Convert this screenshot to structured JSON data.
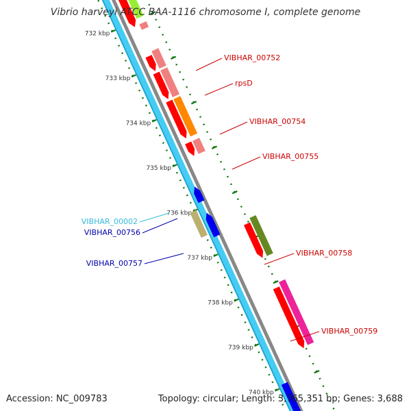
{
  "title": "Vibrio harveyi ATCC BAA-1116 chromosome I, complete genome",
  "footer": {
    "accession": "Accession: NC_009783",
    "summary": "Topology: circular; Length: 3,765,351 bp; Genes: 3,688"
  },
  "ruler": {
    "unit": "kbp",
    "ticks": [
      "732 kbp",
      "733 kbp",
      "734 kbp",
      "735 kbp",
      "736 kbp",
      "737 kbp",
      "738 kbp",
      "739 kbp",
      "740 kbp"
    ]
  },
  "features": [
    {
      "name": "VIBHAR_00752",
      "color": "#cc0000"
    },
    {
      "name": "rpsD",
      "color": "#cc0000"
    },
    {
      "name": "VIBHAR_00754",
      "color": "#cc0000"
    },
    {
      "name": "VIBHAR_00755",
      "color": "#cc0000"
    },
    {
      "name": "VIBHAR_00002",
      "color": "#33bbdd"
    },
    {
      "name": "VIBHAR_00756",
      "color": "#0000aa"
    },
    {
      "name": "VIBHAR_00757",
      "color": "#0000aa"
    },
    {
      "name": "VIBHAR_00758",
      "color": "#cc0000"
    },
    {
      "name": "VIBHAR_00759",
      "color": "#cc0000"
    }
  ],
  "colors": {
    "backbone": "#888888",
    "rna_track": "#44ccf2",
    "rna_track_edge": "#1a9ccc",
    "forward_gene": "#ff0000",
    "reverse_gene": "#0000ee",
    "tick_green": "#117711",
    "light_red": "#f08080",
    "orange": "#ff8800",
    "olive": "#668822",
    "khaki": "#bbb070",
    "magenta": "#ee2299",
    "lime": "#99ee33"
  }
}
